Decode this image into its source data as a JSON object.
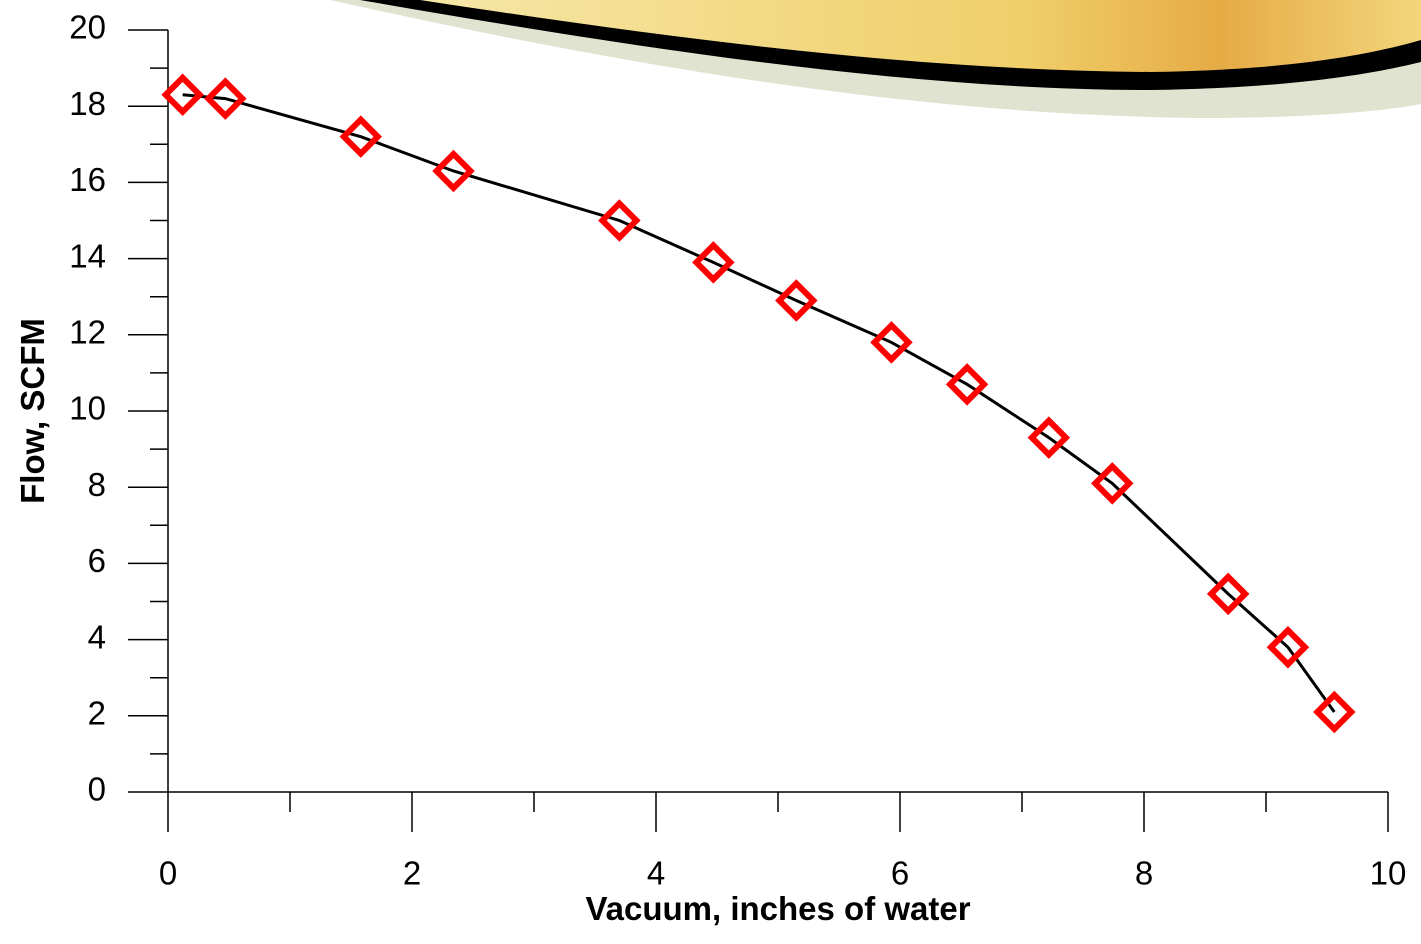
{
  "chart_data": {
    "type": "line",
    "x_label": "Vacuum, inches of water",
    "y_label": "Flow, SCFM",
    "x": [
      0.12,
      0.47,
      1.58,
      2.34,
      3.7,
      4.47,
      5.15,
      5.93,
      6.55,
      7.22,
      7.74,
      8.69,
      9.18,
      9.56
    ],
    "series": [
      {
        "color": "#000000",
        "marker": "diamond",
        "marker_color": "#ff0000",
        "values": [
          18.3,
          18.2,
          17.2,
          16.3,
          15.0,
          13.9,
          12.9,
          11.8,
          10.7,
          9.3,
          8.1,
          5.2,
          3.8,
          2.1
        ]
      }
    ],
    "xlim": [
      0,
      10
    ],
    "ylim": [
      0,
      20
    ],
    "xticks": [
      0,
      2,
      4,
      6,
      8,
      10
    ],
    "yticks": [
      0,
      2,
      4,
      6,
      8,
      10,
      12,
      14,
      16,
      18,
      20
    ],
    "xminorticks": [
      1,
      3,
      5,
      7,
      9
    ],
    "yminorticks": [
      1,
      3,
      5,
      7,
      9,
      11,
      13,
      15,
      17,
      19
    ]
  }
}
